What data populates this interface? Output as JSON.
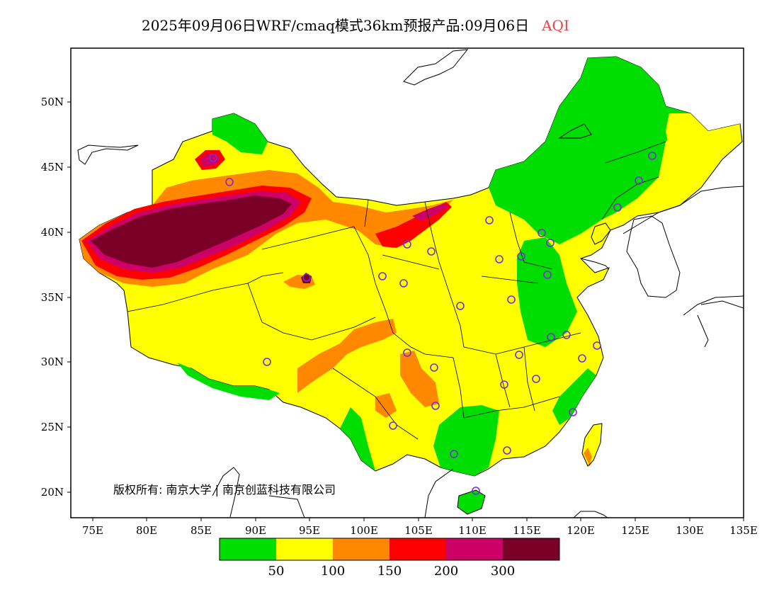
{
  "title": {
    "main": "2025年09月06日WRF/cmaq模式36km预报产品:09月06日",
    "variable": "AQI"
  },
  "map": {
    "lon_range": [
      73,
      135
    ],
    "lat_range": [
      18,
      54
    ],
    "x_ticks": [
      "75E",
      "80E",
      "85E",
      "90E",
      "95E",
      "100E",
      "105E",
      "110E",
      "115E",
      "120E",
      "125E",
      "130E",
      "135E"
    ],
    "y_ticks": [
      "50N",
      "45N",
      "40N",
      "35N",
      "30N",
      "25N",
      "20N"
    ],
    "copyright": "版权所有: 南京大学 | 南京创蓝科技有限公司",
    "monitor_site_color": "#7b2bd8"
  },
  "legend": {
    "colors": [
      "#00dd00",
      "#ffff00",
      "#ff8800",
      "#ff0000",
      "#cc0066",
      "#7a0028"
    ],
    "labels": [
      "50",
      "100",
      "150",
      "200",
      "300"
    ]
  }
}
